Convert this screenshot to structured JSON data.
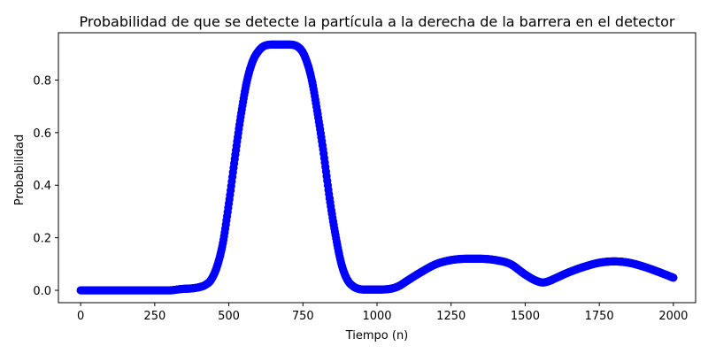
{
  "chart_data": {
    "type": "scatter",
    "title": "Probabilidad de que se detecte la partícula a la derecha de la barrera en el detector",
    "xlabel": "Tiempo (n)",
    "ylabel": "Probabilidad",
    "xlim": [
      -75,
      2075
    ],
    "ylim": [
      -0.047,
      0.98
    ],
    "x_ticks": [
      0,
      250,
      500,
      750,
      1000,
      1250,
      1500,
      1750,
      2000
    ],
    "x_tick_labels": [
      "0",
      "250",
      "500",
      "750",
      "1000",
      "1250",
      "1500",
      "1750",
      "2000"
    ],
    "y_ticks": [
      0.0,
      0.2,
      0.4,
      0.6,
      0.8
    ],
    "y_tick_labels": [
      "0.0",
      "0.2",
      "0.4",
      "0.6",
      "0.8"
    ],
    "grid": false,
    "marker_color": "#0000ff",
    "series": [
      {
        "x": [
          0,
          100,
          200,
          300,
          340,
          380,
          400,
          420,
          440,
          460,
          480,
          500,
          520,
          540,
          560,
          580,
          600,
          620,
          650,
          700,
          740,
          760,
          780,
          800,
          820,
          840,
          860,
          880,
          900,
          920,
          940,
          960,
          1000,
          1040,
          1060,
          1080,
          1100,
          1150,
          1200,
          1250,
          1300,
          1350,
          1400,
          1450,
          1500,
          1540,
          1560,
          1580,
          1600,
          1650,
          1700,
          1750,
          1800,
          1850,
          1900,
          1950,
          2000
        ],
        "y": [
          0.0,
          0.0,
          0.0,
          0.0,
          0.005,
          0.008,
          0.012,
          0.02,
          0.04,
          0.09,
          0.18,
          0.33,
          0.5,
          0.66,
          0.79,
          0.87,
          0.91,
          0.93,
          0.935,
          0.935,
          0.92,
          0.88,
          0.8,
          0.67,
          0.52,
          0.35,
          0.21,
          0.1,
          0.04,
          0.015,
          0.005,
          0.003,
          0.003,
          0.005,
          0.01,
          0.02,
          0.035,
          0.07,
          0.1,
          0.115,
          0.12,
          0.12,
          0.115,
          0.1,
          0.06,
          0.035,
          0.03,
          0.035,
          0.045,
          0.07,
          0.09,
          0.105,
          0.11,
          0.105,
          0.09,
          0.07,
          0.048
        ]
      }
    ]
  }
}
